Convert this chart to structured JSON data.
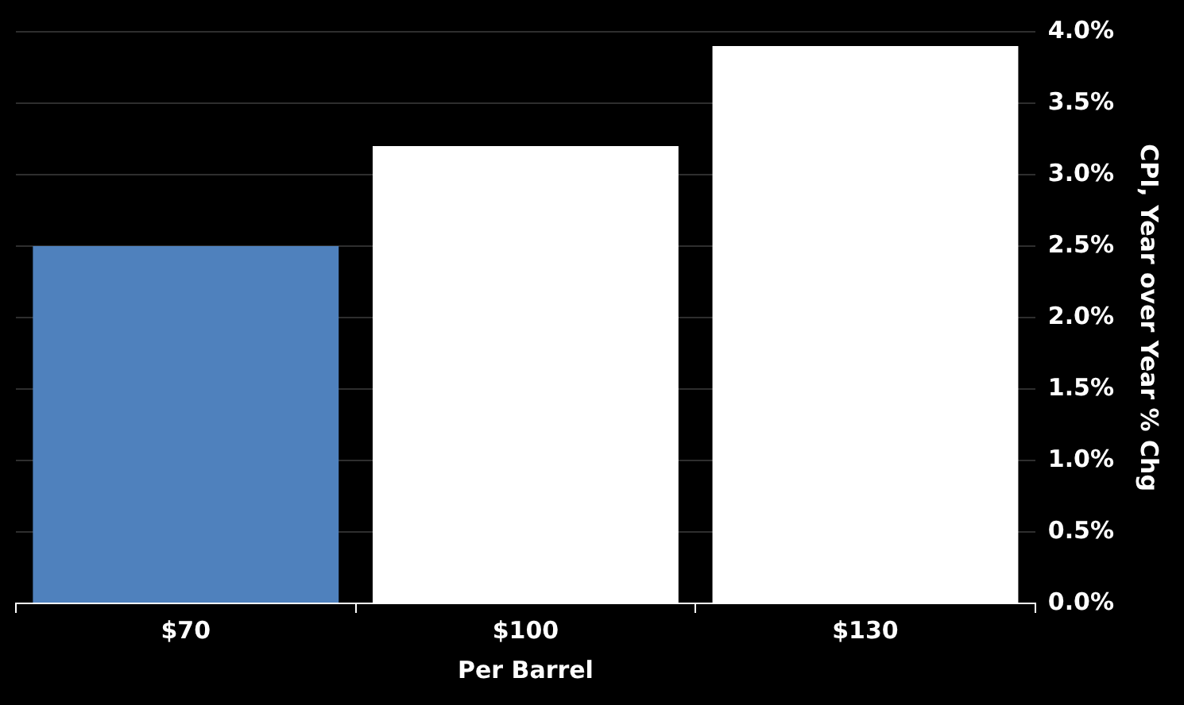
{
  "chart_data": {
    "type": "bar",
    "xlabel": "Per Barrel",
    "ylabel": "CPI, Year over Year % Chg",
    "categories": [
      "$70",
      "$100",
      "$130"
    ],
    "values": [
      2.5,
      3.2,
      3.9
    ],
    "colors": [
      "#4f81bd",
      "#ffffff",
      "#ffffff"
    ],
    "ylim": [
      0,
      4
    ],
    "yticks": [
      {
        "value": 0,
        "label": "0.0%"
      },
      {
        "value": 0.5,
        "label": "0.5%"
      },
      {
        "value": 1,
        "label": "1.0%"
      },
      {
        "value": 1.5,
        "label": "1.5%"
      },
      {
        "value": 2,
        "label": "2.0%"
      },
      {
        "value": 2.5,
        "label": "2.5%"
      },
      {
        "value": 3,
        "label": "3.0%"
      },
      {
        "value": 3.5,
        "label": "3.5%"
      },
      {
        "value": 4,
        "label": "4.0%"
      }
    ],
    "grid": "y",
    "legend": false
  }
}
